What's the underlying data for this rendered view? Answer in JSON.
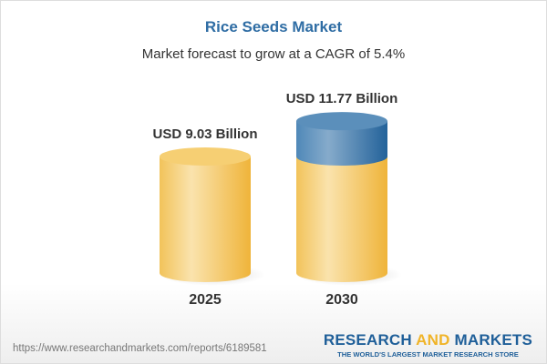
{
  "header": {
    "title": "Rice Seeds Market",
    "subtitle": "Market forecast to grow at a CAGR of 5.4%"
  },
  "chart_data": {
    "type": "bar",
    "style": "3d-cylinder",
    "categories": [
      "2025",
      "2030"
    ],
    "values": [
      9.03,
      11.77
    ],
    "data_labels": [
      "USD 9.03 Billion",
      "USD 11.77 Billion"
    ],
    "unit": "USD Billion",
    "colors": {
      "base": "#f3c65c",
      "growth": "#3f7fb0"
    }
  },
  "footer": {
    "url": "https://www.researchandmarkets.com/reports/6189581",
    "logo_part1": "RESEARCH ",
    "logo_and": "AND",
    "logo_part2": " MARKETS",
    "tagline": "THE WORLD'S LARGEST MARKET RESEARCH STORE"
  }
}
